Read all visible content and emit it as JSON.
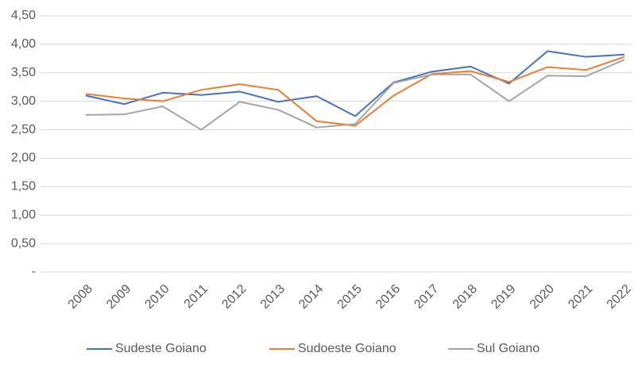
{
  "chart_data": {
    "type": "line",
    "categories": [
      "2008",
      "2009",
      "2010",
      "2011",
      "2012",
      "2013",
      "2014",
      "2015",
      "2016",
      "2017",
      "2018",
      "2019",
      "2020",
      "2021",
      "2022"
    ],
    "series": [
      {
        "name": "Sudeste Goiano",
        "color": "#4472c4",
        "values": [
          3.1,
          2.95,
          3.15,
          3.11,
          3.17,
          2.99,
          3.09,
          2.74,
          3.33,
          3.52,
          3.61,
          3.31,
          3.88,
          3.78,
          3.82
        ]
      },
      {
        "name": "Sudoeste Goiano",
        "color": "#ed7d31",
        "values": [
          3.13,
          3.05,
          3.0,
          3.2,
          3.3,
          3.2,
          2.65,
          2.57,
          3.1,
          3.48,
          3.53,
          3.34,
          3.6,
          3.55,
          3.78
        ]
      },
      {
        "name": "Sul Goiano",
        "color": "#a5a5a5",
        "values": [
          2.76,
          2.77,
          2.91,
          2.5,
          2.99,
          2.85,
          2.54,
          2.6,
          3.32,
          3.47,
          3.47,
          3.0,
          3.45,
          3.44,
          3.73
        ]
      }
    ],
    "ylim": [
      0,
      4.5
    ],
    "yticks": [
      {
        "value": 0,
        "label": "-"
      },
      {
        "value": 0.5,
        "label": "0,50"
      },
      {
        "value": 1,
        "label": "1,00"
      },
      {
        "value": 1.5,
        "label": "1,50"
      },
      {
        "value": 2,
        "label": "2,00"
      },
      {
        "value": 2.5,
        "label": "2,50"
      },
      {
        "value": 3,
        "label": "3,00"
      },
      {
        "value": 3.5,
        "label": "3,50"
      },
      {
        "value": 4,
        "label": "4,00"
      },
      {
        "value": 4.5,
        "label": "4,50"
      }
    ],
    "grid": true,
    "legend": "bottom"
  }
}
